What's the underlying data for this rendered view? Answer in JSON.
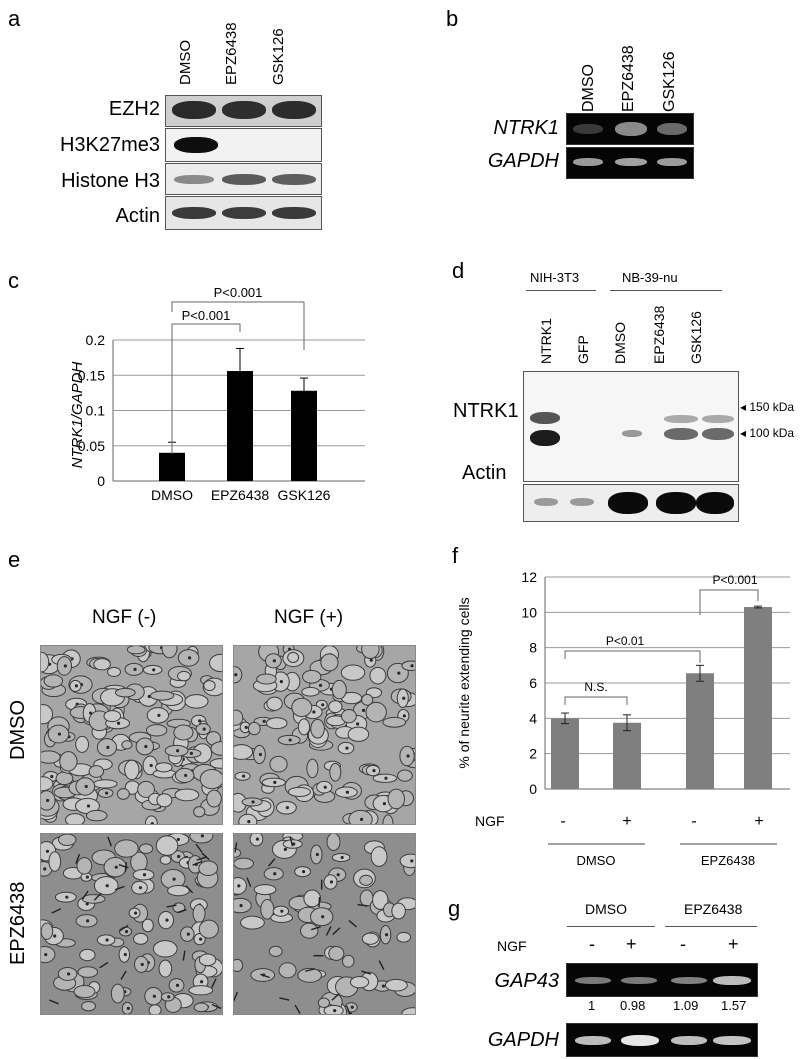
{
  "panel_a": {
    "letter": "a",
    "lanes": [
      "DMSO",
      "EPZ6438",
      "GSK126"
    ],
    "rows": [
      "EZH2",
      "H3K27me3",
      "Histone H3",
      "Actin"
    ]
  },
  "panel_b": {
    "letter": "b",
    "lanes": [
      "DMSO",
      "EPZ6438",
      "GSK126"
    ],
    "rows": [
      "NTRK1",
      "GAPDH"
    ]
  },
  "panel_c": {
    "letter": "c",
    "pvalue_top": "P<0.001",
    "pvalue_inner": "P<0.001"
  },
  "panel_d": {
    "letter": "d",
    "group1": "NIH-3T3",
    "group2": "NB-39-nu",
    "lanes": [
      "NTRK1",
      "GFP",
      "DMSO",
      "EPZ6438",
      "GSK126"
    ],
    "rows": [
      "NTRK1",
      "Actin"
    ],
    "marker_150": "◂ 150 kDa",
    "marker_100": "◂ 100 kDa"
  },
  "panel_e": {
    "letter": "e",
    "col1": "NGF (-)",
    "col2": "NGF (+)",
    "row1": "DMSO",
    "row2": "EPZ6438"
  },
  "panel_f": {
    "letter": "f",
    "ngf_label": "NGF",
    "ngf_signs": [
      "-",
      "+",
      "-",
      "+"
    ],
    "group1": "DMSO",
    "group2": "EPZ6438",
    "pvalue_1": "N.S.",
    "pvalue_2": "P<0.01",
    "pvalue_3": "P<0.001"
  },
  "panel_g": {
    "letter": "g",
    "group1": "DMSO",
    "group2": "EPZ6438",
    "ngf_label": "NGF",
    "ngf_signs": [
      "-",
      "+",
      "-",
      "+"
    ],
    "rows": [
      "GAP43",
      "GAPDH"
    ],
    "quant": [
      "1",
      "0.98",
      "1.09",
      "1.57"
    ]
  },
  "chart_data": [
    {
      "panel": "c",
      "type": "bar",
      "categories": [
        "DMSO",
        "EPZ6438",
        "GSK126"
      ],
      "values": [
        0.04,
        0.156,
        0.128
      ],
      "errors": [
        0.015,
        0.032,
        0.018
      ],
      "ylabel": "NTRK1/GAPDH",
      "ylim": [
        0,
        0.2
      ],
      "yticks": [
        0,
        0.05,
        0.1,
        0.15,
        0.2
      ],
      "ytick_labels": [
        "0",
        "0.05",
        "0.1",
        "0.15",
        "0.2"
      ],
      "grid": true,
      "bar_color": "#000000"
    },
    {
      "panel": "f",
      "type": "bar",
      "categories": [
        "DMSO NGF-",
        "DMSO NGF+",
        "EPZ6438 NGF-",
        "EPZ6438 NGF+"
      ],
      "values": [
        4.0,
        3.75,
        6.55,
        10.3
      ],
      "errors": [
        0.3,
        0.45,
        0.45,
        0.05
      ],
      "ylabel": "% of neurite extending cells",
      "ylim": [
        0,
        12
      ],
      "yticks": [
        0,
        2,
        4,
        6,
        8,
        10,
        12
      ],
      "ytick_labels": [
        "0",
        "2",
        "4",
        "6",
        "8",
        "10",
        "12"
      ],
      "grid": true,
      "bar_color": "#7f7f7f"
    }
  ]
}
